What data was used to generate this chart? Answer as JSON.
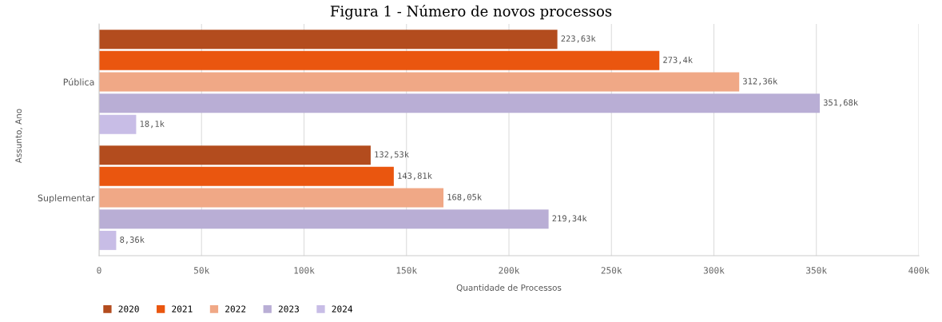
{
  "chart_data": {
    "type": "bar",
    "orientation": "horizontal",
    "title": "Figura 1 - Número de novos processos",
    "xlabel": "Quantidade de Processos",
    "ylabel": "Assunto, Ano",
    "categories": [
      "Pública",
      "Suplementar"
    ],
    "series": [
      {
        "name": "2020",
        "color": "#b34c1e",
        "values": [
          223630,
          132530
        ],
        "value_labels": [
          "223,63k",
          "132,53k"
        ]
      },
      {
        "name": "2021",
        "color": "#ea560f",
        "values": [
          273400,
          143810
        ],
        "value_labels": [
          "273,4k",
          "143,81k"
        ]
      },
      {
        "name": "2022",
        "color": "#f0a886",
        "values": [
          312360,
          168050
        ],
        "value_labels": [
          "312,36k",
          "168,05k"
        ]
      },
      {
        "name": "2023",
        "color": "#b9aed5",
        "values": [
          351680,
          219340
        ],
        "value_labels": [
          "351,68k",
          "219,34k"
        ]
      },
      {
        "name": "2024",
        "color": "#c8bde6",
        "values": [
          18100,
          8360
        ],
        "value_labels": [
          "18,1k",
          "8,36k"
        ]
      }
    ],
    "xlim": [
      0,
      400000
    ],
    "xticks": [
      0,
      {
        "value": 50000,
        "label": "50k"
      },
      {
        "value": 100000,
        "label": "100k"
      },
      {
        "value": 150000,
        "label": "150k"
      },
      {
        "value": 200000,
        "label": "200k"
      },
      {
        "value": 250000,
        "label": "250k"
      },
      {
        "value": 300000,
        "label": "300k"
      },
      {
        "value": 350000,
        "label": "350k"
      },
      {
        "value": 400000,
        "label": "400k"
      }
    ],
    "grid": "x",
    "legend": "bottom left"
  }
}
